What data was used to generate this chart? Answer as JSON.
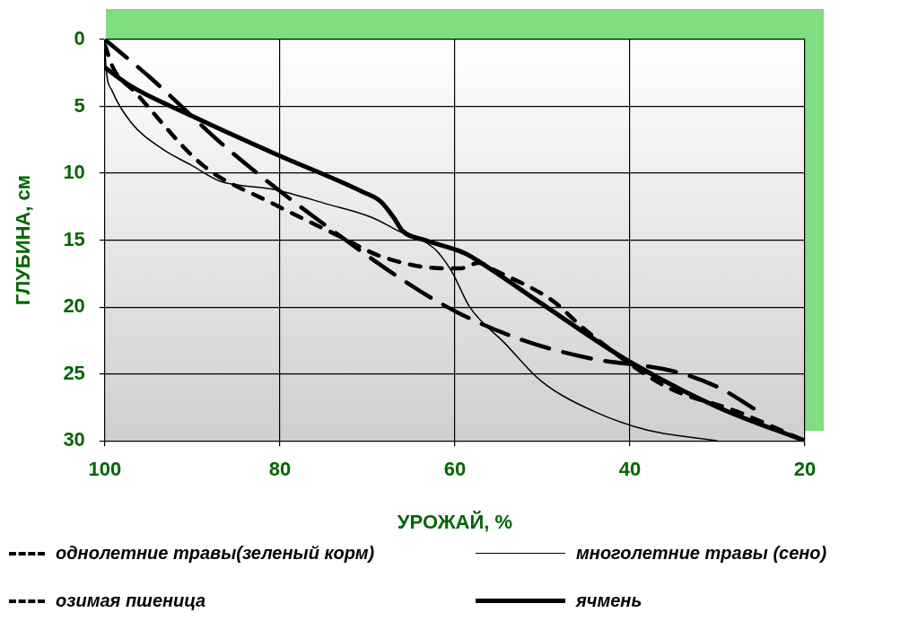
{
  "chart_data": {
    "type": "line",
    "xlabel": "УРОЖАЙ, %",
    "ylabel": "ГЛУБИНА, см",
    "xlim": [
      100,
      20
    ],
    "xticks": [
      100,
      80,
      60,
      40,
      20
    ],
    "ylim": [
      30,
      0
    ],
    "yticks": [
      0,
      5,
      10,
      15,
      20,
      25,
      30
    ],
    "grid": true,
    "legend": "bottom",
    "marker": "none",
    "series": [
      {
        "name": "однолетние травы(зеленый корм)",
        "color": "#000000",
        "line_style": "dashed",
        "x": [
          100,
          94.9,
          86.1,
          75.6,
          61.7,
          53,
          44.8,
          35,
          29.9,
          25.3
        ],
        "values": [
          0,
          2.8,
          8.1,
          13.5,
          19.7,
          22.3,
          23.8,
          24.8,
          26,
          27.8
        ]
      },
      {
        "name": "многолетние травы (сено)",
        "color": "#000000",
        "line_style": "solid",
        "x": [
          100,
          99.9,
          99.2,
          97,
          93.4,
          90.1,
          86.8,
          80.7,
          74.6,
          69.5,
          66.5,
          62.4,
          60.4,
          58.3,
          54.3,
          50.2,
          44.1,
          38,
          30
        ],
        "values": [
          0,
          1.8,
          3.8,
          6.2,
          8.2,
          9.4,
          10.6,
          11.2,
          12.3,
          13.3,
          14.3,
          15.6,
          17.3,
          20,
          22.7,
          25.5,
          27.8,
          29.2,
          30
        ]
      },
      {
        "name": "озимая пшеница",
        "color": "#000000",
        "line_style": "dotted",
        "x": [
          100,
          99,
          96.6,
          88.8,
          80.7,
          72.9,
          68.5,
          61.4,
          59.3,
          57.3,
          55.3,
          48.9,
          45.1,
          36,
          27.8,
          20
        ],
        "values": [
          0.4,
          2.2,
          3.9,
          9.4,
          12.3,
          14.8,
          16.2,
          17.1,
          17.1,
          16.7,
          17.3,
          19.5,
          21.7,
          25.9,
          27.8,
          30
        ]
      },
      {
        "name": "ячмень",
        "color": "#000000",
        "line_style": "solid",
        "x": [
          100,
          97,
          90.1,
          80.7,
          70.5,
          68.5,
          67,
          66,
          63.4,
          58.8,
          56.3,
          50.2,
          40,
          29.9,
          20
        ],
        "values": [
          2.1,
          3.5,
          5.7,
          8.5,
          11.4,
          12.1,
          13.3,
          14.3,
          15,
          16,
          17,
          19.7,
          24.1,
          27.5,
          30
        ]
      }
    ]
  }
}
